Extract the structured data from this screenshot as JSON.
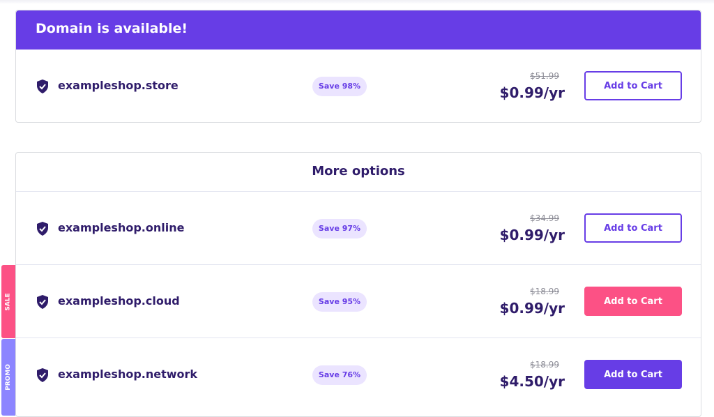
{
  "available": {
    "title": "Domain is available!",
    "domain": {
      "name": "exampleshop.store",
      "save": "Save 98%",
      "old_price": "$51.99",
      "price": "$0.99/yr",
      "button": "Add to Cart"
    }
  },
  "more": {
    "title": "More options",
    "items": [
      {
        "name": "exampleshop.online",
        "save": "Save 97%",
        "old_price": "$34.99",
        "price": "$0.99/yr",
        "button": "Add to Cart"
      },
      {
        "name": "exampleshop.cloud",
        "save": "Save 95%",
        "old_price": "$18.99",
        "price": "$0.99/yr",
        "button": "Add to Cart",
        "ribbon": "SALE"
      },
      {
        "name": "exampleshop.network",
        "save": "Save 76%",
        "old_price": "$18.99",
        "price": "$4.50/yr",
        "button": "Add to Cart",
        "ribbon": "PROMO"
      }
    ]
  },
  "colors": {
    "brand": "#673DE6",
    "sale": "#FC5185",
    "promo": "#8C85FF",
    "text": "#2F1C6A"
  }
}
